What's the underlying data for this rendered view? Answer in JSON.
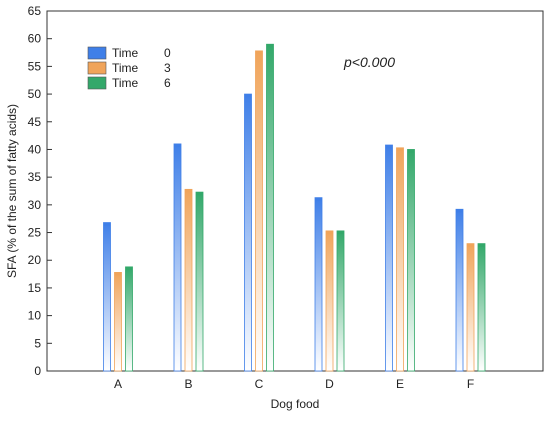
{
  "chart_data": {
    "type": "bar",
    "title": "",
    "xlabel": "Dog food",
    "ylabel": "SFA (% of the sum of fatty acids)",
    "categories": [
      "A",
      "B",
      "C",
      "D",
      "E",
      "F"
    ],
    "ylim": [
      0,
      65
    ],
    "yticks": [
      0,
      5,
      10,
      15,
      20,
      25,
      30,
      35,
      40,
      45,
      50,
      55,
      60,
      65
    ],
    "grid": false,
    "legend_position": "top-left",
    "annotation": "p<0.000",
    "series": [
      {
        "name": "Time",
        "label_value": "0",
        "color": "#3f7fe8",
        "values": [
          26.8,
          41.0,
          50.0,
          31.3,
          40.8,
          29.2
        ]
      },
      {
        "name": "Time",
        "label_value": "3",
        "color": "#f0a45a",
        "values": [
          17.8,
          32.8,
          57.8,
          25.3,
          40.3,
          23.0
        ]
      },
      {
        "name": "Time",
        "label_value": "6",
        "color": "#33a86a",
        "values": [
          18.8,
          32.3,
          59.0,
          25.3,
          40.0,
          23.0
        ]
      }
    ]
  }
}
